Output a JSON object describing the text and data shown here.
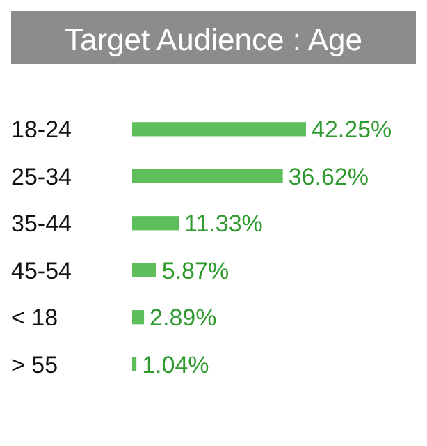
{
  "chart_data": {
    "type": "bar",
    "orientation": "horizontal",
    "title": "Target Audience : Age",
    "categories": [
      "18-24",
      "25-34",
      "35-44",
      "45-54",
      "< 18",
      "> 55"
    ],
    "values": [
      42.25,
      36.62,
      11.33,
      5.87,
      2.89,
      1.04
    ],
    "value_labels": [
      "42.25%",
      "36.62%",
      "11.33%",
      "5.87%",
      "2.89%",
      "1.04%"
    ],
    "color": "#5cbf5c"
  }
}
